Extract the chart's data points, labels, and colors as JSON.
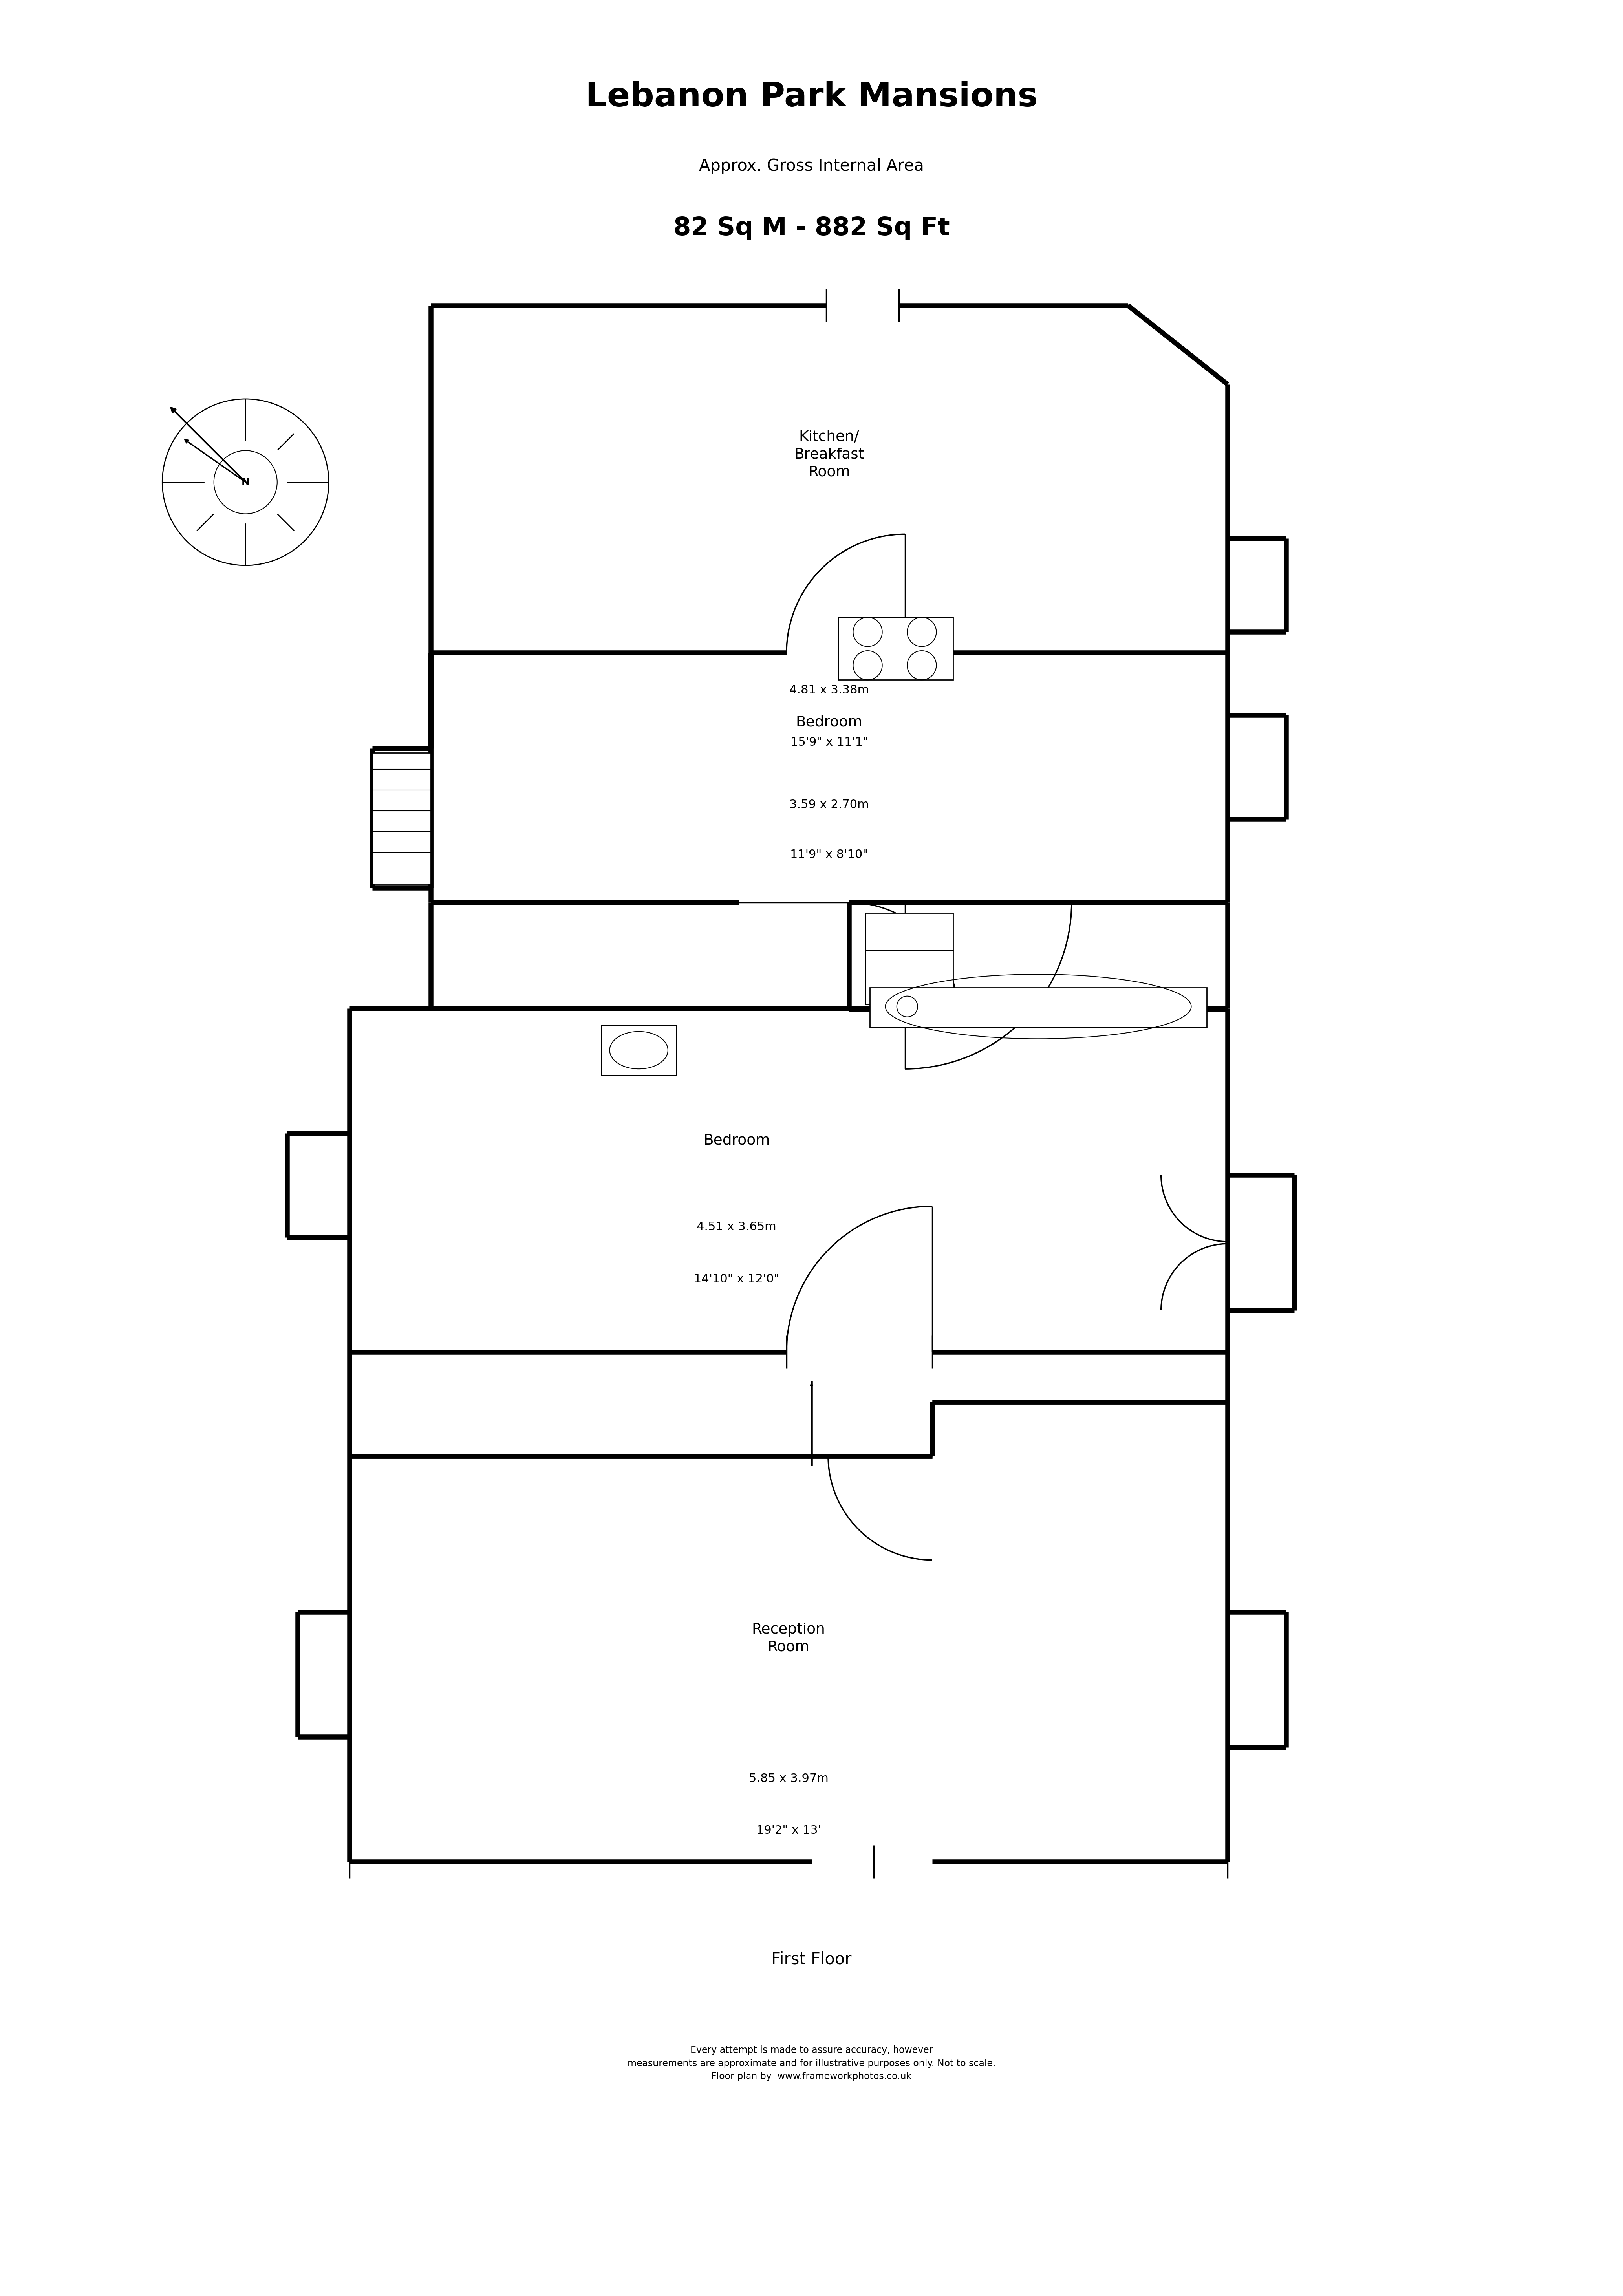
{
  "title": "Lebanon Park Mansions",
  "subtitle": "Approx. Gross Internal Area",
  "area": "82 Sq M - 882 Sq Ft",
  "floor_label": "First Floor",
  "disclaimer": "Every attempt is made to assure accuracy, however\nmeasurements are approximate and for illustrative purposes only. Not to scale.\nFloor plan by  www.frameworkphotos.co.uk",
  "bg_color": "#ffffff",
  "rooms": [
    {
      "name": "Kitchen/\nBreakfast\nRoom",
      "dim1": "4.81 x 3.38m",
      "dim2": "15'9\" x 11'1\""
    },
    {
      "name": "Bedroom",
      "dim1": "3.59 x 2.70m",
      "dim2": "11'9\" x 8'10\""
    },
    {
      "name": "Bedroom",
      "dim1": "4.51 x 3.65m",
      "dim2": "14'10\" x 12'0\""
    },
    {
      "name": "Reception\nRoom",
      "dim1": "5.85 x 3.97m",
      "dim2": "19'2\" x 13'"
    }
  ]
}
